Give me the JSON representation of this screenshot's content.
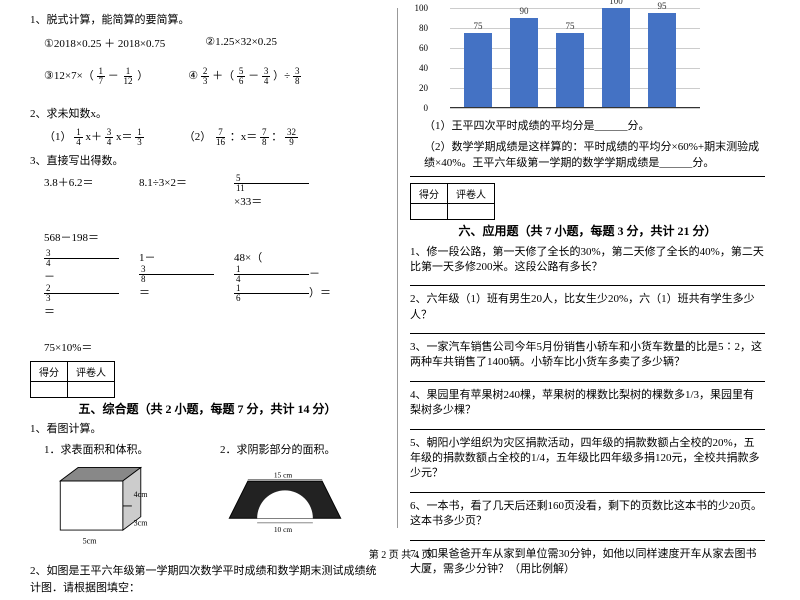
{
  "left": {
    "q1_title": "1、脱式计算，能简算的要简算。",
    "q1_a": "①2018×0.25 ＋ 2018×0.75",
    "q1_b": "②1.25×32×0.25",
    "q1_c_pre": "③12×7×（",
    "q1_c_f1n": "1",
    "q1_c_f1d": "7",
    "q1_c_mid": "－",
    "q1_c_f2n": "1",
    "q1_c_f2d": "12",
    "q1_c_post": "）",
    "q1_d_pre": "④",
    "q1_d_f1n": "2",
    "q1_d_f1d": "3",
    "q1_d_mid1": "＋（",
    "q1_d_f2n": "5",
    "q1_d_f2d": "6",
    "q1_d_mid2": "－",
    "q1_d_f3n": "3",
    "q1_d_f3d": "4",
    "q1_d_mid3": "）÷",
    "q1_d_f4n": "3",
    "q1_d_f4d": "8",
    "q2_title": "2、求未知数x。",
    "q2_a_pre": "（1）",
    "q2_a_f1n": "1",
    "q2_a_f1d": "4",
    "q2_a_mid1": "x＋",
    "q2_a_f2n": "3",
    "q2_a_f2d": "4",
    "q2_a_mid2": "x＝",
    "q2_a_f3n": "1",
    "q2_a_f3d": "3",
    "q2_b_pre": "（2）",
    "q2_b_f1n": "7",
    "q2_b_f1d": "16",
    "q2_b_mid1": "：x＝",
    "q2_b_f2n": "7",
    "q2_b_f2d": "8",
    "q2_b_mid2": "：",
    "q2_b_f3n": "32",
    "q2_b_f3d": "9",
    "q3_title": "3、直接写出得数。",
    "q3_1": "3.8＋6.2＝",
    "q3_2": "8.1÷3×2＝",
    "q3_3_f1n": "5",
    "q3_3_f1d": "11",
    "q3_3_post": "×33＝",
    "q3_4": "568－198＝",
    "q3_5_f1n": "3",
    "q3_5_f1d": "4",
    "q3_5_mid": "－",
    "q3_5_f2n": "2",
    "q3_5_f2d": "3",
    "q3_5_post": "＝",
    "q3_6_pre": "1－",
    "q3_6_f1n": "3",
    "q3_6_f1d": "8",
    "q3_6_post": "＝",
    "q3_7_pre": "48×（",
    "q3_7_f1n": "1",
    "q3_7_f1d": "4",
    "q3_7_mid": "－",
    "q3_7_f2n": "1",
    "q3_7_f2d": "6",
    "q3_7_post": "）＝",
    "q3_8": "75×10%＝",
    "score_h1": "得分",
    "score_h2": "评卷人",
    "sec5_title": "五、综合题（共 2 小题，每题 7 分，共计 14 分）",
    "s5_q1": "1、看图计算。",
    "s5_q1a": "1．求表面积和体积。",
    "s5_q1b": "2．求阴影部分的面积。",
    "dim_4cm": "4cm",
    "dim_3cm": "3cm",
    "dim_5cm": "5cm",
    "dim_15cm": "15 cm",
    "dim_10cm": "10 cm",
    "s5_q2": "2、如图是王平六年级第一学期四次数学平时成绩和数学期末测试成绩统计图．请根据图填空："
  },
  "chart": {
    "y": [
      "0",
      "20",
      "40",
      "60",
      "80",
      "100"
    ],
    "vals": [
      75,
      90,
      75,
      100,
      95
    ],
    "labels": [
      "75",
      "90",
      "75",
      "100",
      "95"
    ],
    "bar_color": "#4472c4",
    "grid_color": "#cccccc",
    "y_max": 100
  },
  "right": {
    "r1": "（1）王平四次平时成绩的平均分是______分。",
    "r2": "（2）数学学期成绩是这样算的：平时成绩的平均分×60%+期末测验成绩×40%。王平六年级第一学期的数学学期成绩是______分。",
    "score_h1": "得分",
    "score_h2": "评卷人",
    "sec6_title": "六、应用题（共 7 小题，每题 3 分，共计 21 分）",
    "q1": "1、修一段公路，第一天修了全长的30%，第二天修了全长的40%，第二天比第一天多修200米。这段公路有多长？",
    "q2": "2、六年级（1）班有男生20人，比女生少20%，六（1）班共有学生多少人？",
    "q3": "3、一家汽车销售公司今年5月份销售小轿车和小货车数量的比是5∶2，这两种车共销售了1400辆。小轿车比小货车多卖了多少辆？",
    "q4": "4、果园里有苹果树240棵，苹果树的棵数比梨树的棵数多1/3，果园里有梨树多少棵？",
    "q5": "5、朝阳小学组织为灾区捐款活动，四年级的捐款数额占全校的20%，五年级的捐款数额占全校的1/4，五年级比四年级多捐120元，全校共捐款多少元？",
    "q6": "6、一本书，看了几天后还剩160页没看，剩下的页数比这本书的少20页。这本书多少页？",
    "q7": "7、如果爸爸开车从家到单位需30分钟，如他以同样速度开车从家去图书大厦，需多少分钟？（用比例解）"
  },
  "footer": "第 2 页  共 4 页"
}
